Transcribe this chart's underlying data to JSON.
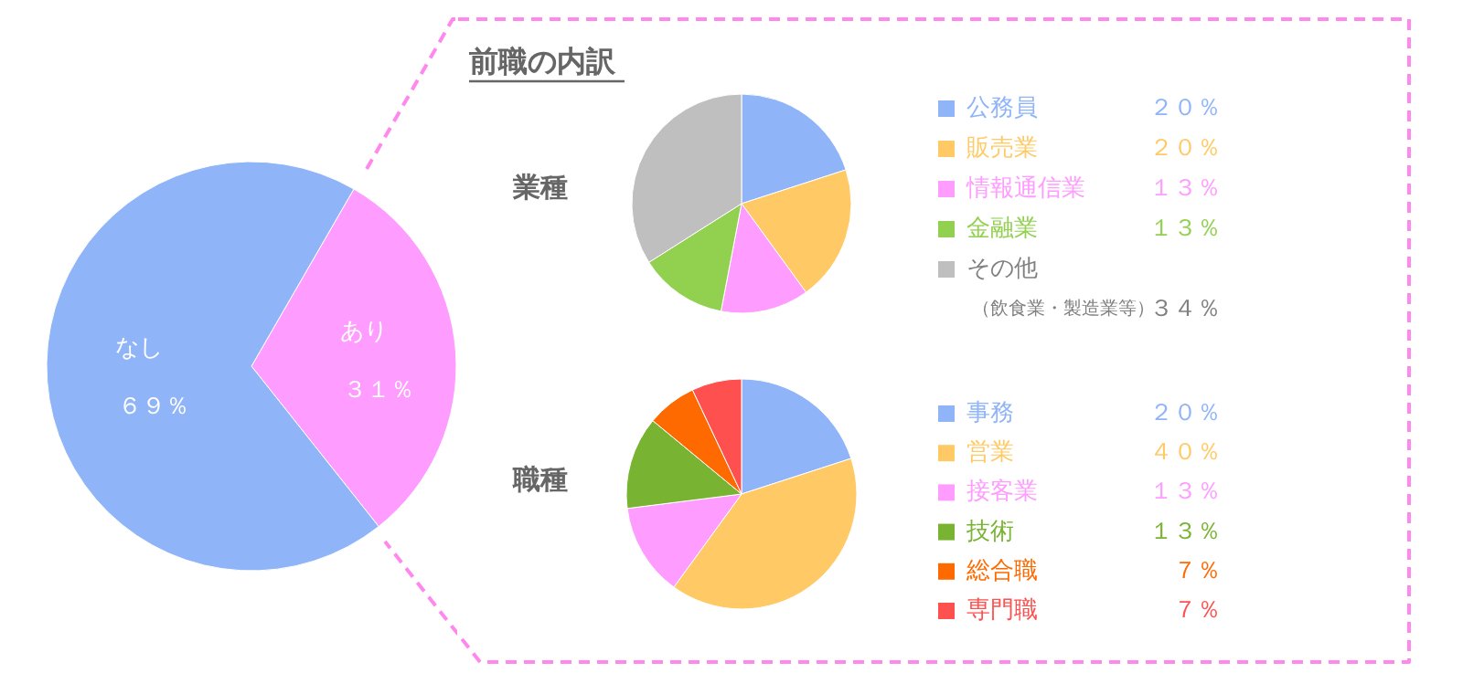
{
  "chart_data": [
    {
      "type": "pie",
      "categories": [
        "あり",
        "なし"
      ],
      "values": [
        31,
        69
      ],
      "colors": [
        "#ff9cff",
        "#8fb4f8"
      ],
      "value_labels": [
        "３１％",
        "６９％"
      ]
    },
    {
      "type": "pie",
      "title": "前職の内訳",
      "subtitle": "業種",
      "categories": [
        "公務員",
        "販売業",
        "情報通信業",
        "金融業",
        "その他（飲食業・製造業等）"
      ],
      "values": [
        20,
        20,
        13,
        13,
        34
      ],
      "colors": [
        "#8fb4f8",
        "#ffca66",
        "#ff9cff",
        "#92d050",
        "#bfbfbf"
      ],
      "value_labels": [
        "２０％",
        "２０％",
        "１３％",
        "１３％",
        "３４％"
      ],
      "legend": "right"
    },
    {
      "type": "pie",
      "title": "職種",
      "categories": [
        "事務",
        "営業",
        "接客業",
        "技術",
        "総合職",
        "専門職"
      ],
      "values": [
        20,
        40,
        13,
        13,
        7,
        7
      ],
      "colors": [
        "#8fb4f8",
        "#ffca66",
        "#ff9cff",
        "#78b431",
        "#ff6a00",
        "#ff5050"
      ],
      "value_labels": [
        "２０％",
        "４０％",
        "１３％",
        "１３％",
        "７％",
        "７％"
      ],
      "legend": "right"
    }
  ]
}
